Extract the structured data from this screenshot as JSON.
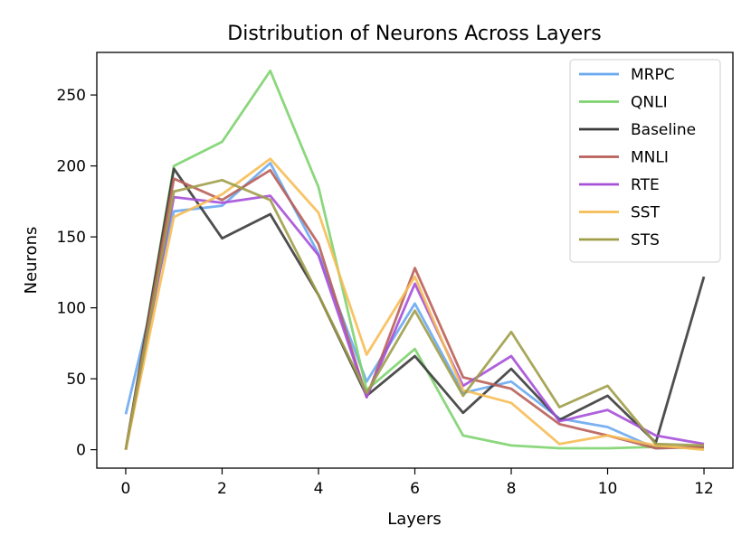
{
  "chart_data": {
    "type": "line",
    "title": "Distribution of Neurons Across Layers",
    "xlabel": "Layers",
    "ylabel": "Neurons",
    "x": [
      0,
      1,
      2,
      3,
      4,
      5,
      6,
      7,
      8,
      9,
      10,
      11,
      12
    ],
    "xlim": [
      -0.6,
      12.6
    ],
    "ylim": [
      -13,
      280
    ],
    "xticks": [
      0,
      2,
      4,
      6,
      8,
      10,
      12
    ],
    "yticks": [
      0,
      50,
      100,
      150,
      200,
      250
    ],
    "grid": false,
    "legend_position": "top-right",
    "series": [
      {
        "name": "MRPC",
        "color": "#6aa9f0",
        "values": [
          25,
          168,
          172,
          202,
          138,
          48,
          103,
          40,
          48,
          22,
          16,
          1,
          2
        ]
      },
      {
        "name": "QNLI",
        "color": "#7ed36f",
        "values": [
          0,
          200,
          217,
          267,
          185,
          42,
          71,
          10,
          3,
          1,
          1,
          2,
          1
        ]
      },
      {
        "name": "Baseline",
        "color": "#3b3b3b",
        "values": [
          0,
          198,
          149,
          166,
          109,
          38,
          66,
          26,
          57,
          21,
          38,
          5,
          122
        ]
      },
      {
        "name": "MNLI",
        "color": "#b95f58",
        "values": [
          0,
          191,
          176,
          197,
          145,
          37,
          128,
          51,
          43,
          18,
          10,
          1,
          2
        ]
      },
      {
        "name": "RTE",
        "color": "#a650d8",
        "values": [
          0,
          178,
          174,
          179,
          137,
          37,
          117,
          45,
          66,
          20,
          28,
          10,
          4
        ]
      },
      {
        "name": "SST",
        "color": "#f6bd55",
        "values": [
          0,
          164,
          180,
          205,
          167,
          67,
          122,
          42,
          33,
          4,
          10,
          3,
          0
        ]
      },
      {
        "name": "STS",
        "color": "#9f9d49",
        "values": [
          0,
          182,
          190,
          176,
          109,
          40,
          98,
          38,
          83,
          30,
          45,
          4,
          3
        ]
      }
    ]
  }
}
